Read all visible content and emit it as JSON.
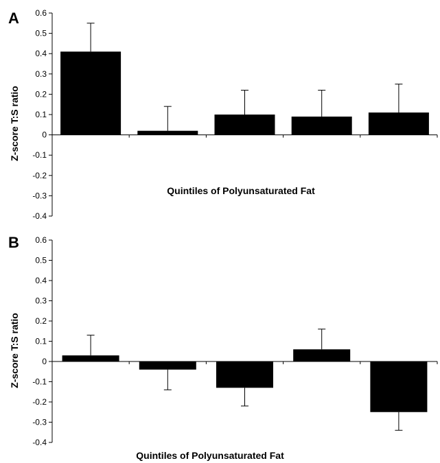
{
  "chart_data": [
    {
      "panel": "A",
      "type": "bar",
      "xlabel": "Quintiles of Polyunsaturated Fat",
      "ylabel": "Z-score T:S ratio",
      "ylim": [
        -0.4,
        0.6
      ],
      "ytick_values": [
        0.6,
        0.5,
        0.4,
        0.3,
        0.2,
        0.1,
        0,
        -0.1,
        -0.2,
        -0.3,
        -0.4
      ],
      "ytick_labels": [
        "0.6",
        "0.5",
        "0.4",
        "0.3",
        "0.2",
        "0.1",
        "0",
        "-0.1",
        "-0.2",
        "-0.3",
        "-0.4"
      ],
      "values": [
        0.41,
        0.02,
        0.1,
        0.09,
        0.11
      ],
      "error_upper": [
        0.14,
        0.12,
        0.12,
        0.13,
        0.14
      ],
      "error_direction": "up",
      "bar_color": "#000000"
    },
    {
      "panel": "B",
      "type": "bar",
      "xlabel": "Quintiles of Polyunsaturated Fat",
      "ylabel": "Z-score T:S ratio",
      "ylim": [
        -0.4,
        0.6
      ],
      "ytick_values": [
        0.6,
        0.5,
        0.4,
        0.3,
        0.2,
        0.1,
        0,
        -0.1,
        -0.2,
        -0.3,
        -0.4
      ],
      "ytick_labels": [
        "0.6",
        "0.5",
        "0.4",
        "0.3",
        "0.2",
        "0.1",
        "0",
        "-0.1",
        "-0.2",
        "-0.3",
        "-0.4"
      ],
      "values": [
        0.03,
        -0.04,
        -0.13,
        0.06,
        -0.25
      ],
      "error_upper": [
        0.1,
        0.1,
        0.09,
        0.1,
        0.09
      ],
      "error_direction": "away_from_zero",
      "bar_color": "#000000"
    }
  ]
}
